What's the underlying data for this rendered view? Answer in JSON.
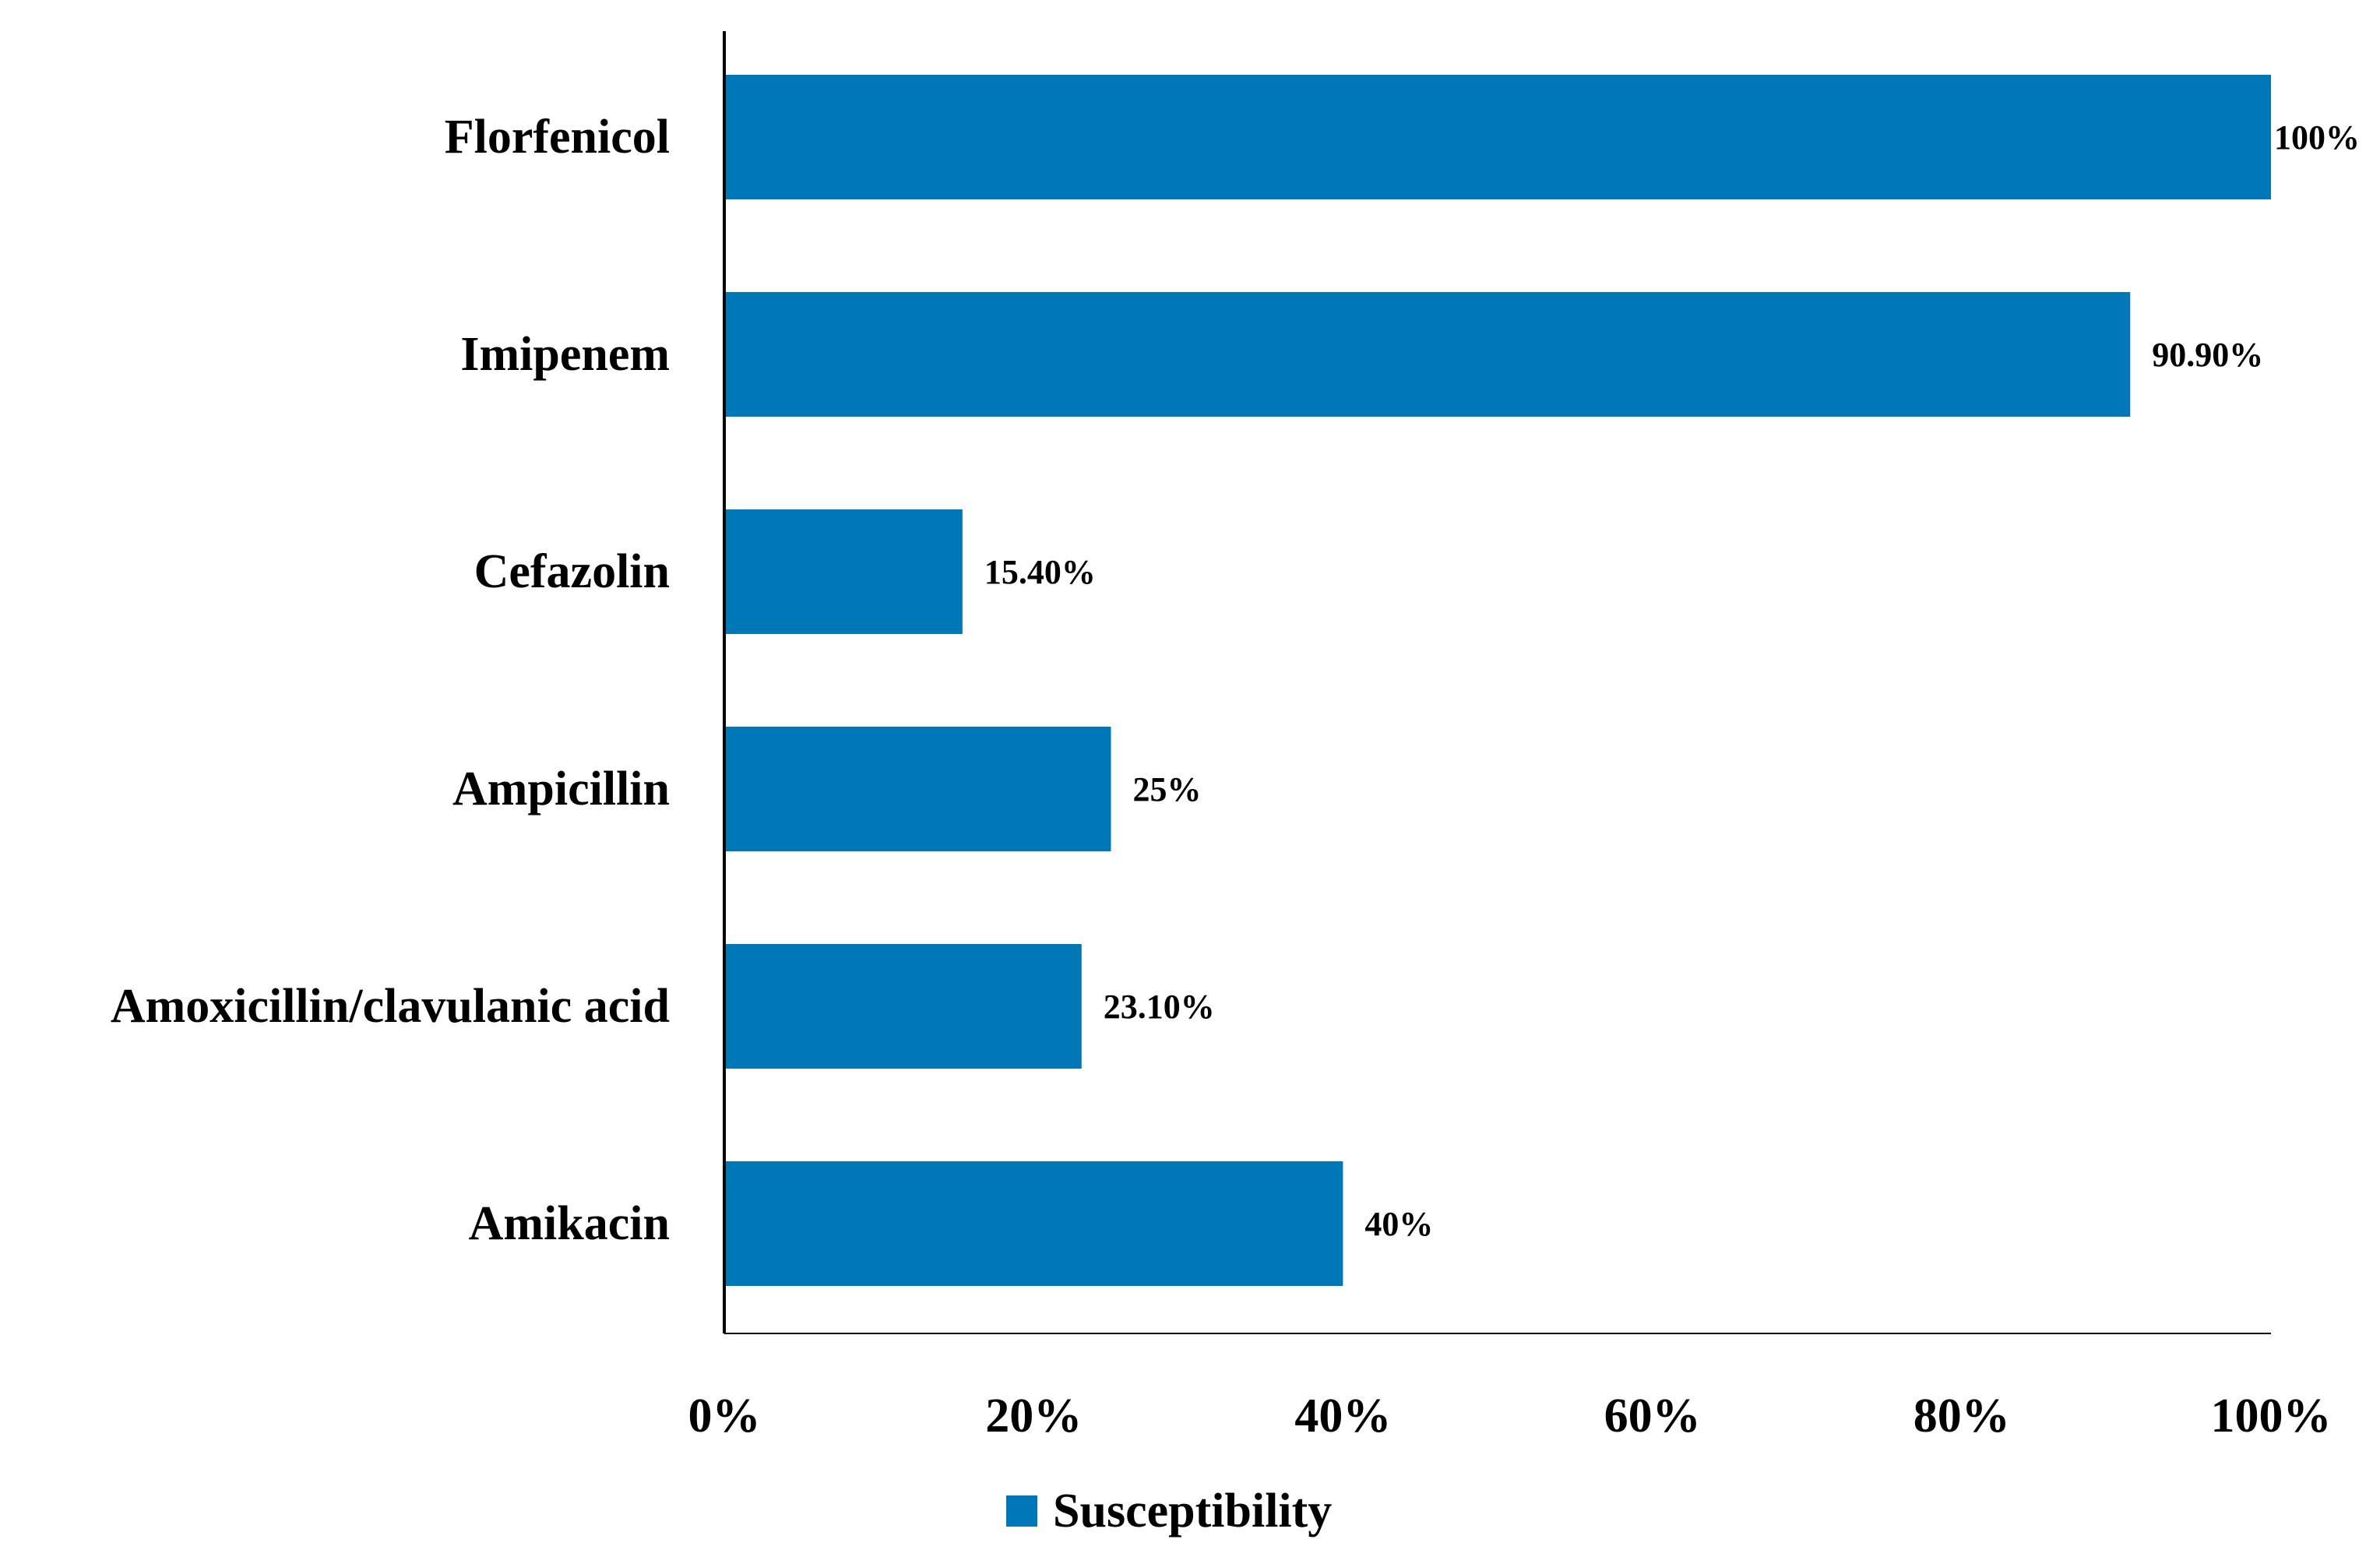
{
  "chart_data": {
    "type": "bar",
    "orientation": "horizontal",
    "categories": [
      "Florfenicol",
      "Imipenem",
      "Cefazolin",
      "Ampicillin",
      "Amoxicillin/clavulanic acid",
      "Amikacin"
    ],
    "series": [
      {
        "name": "Susceptibility",
        "values": [
          100,
          90.9,
          15.4,
          25,
          23.1,
          40
        ],
        "value_labels": [
          "100%",
          "90.90%",
          "15.40%",
          "25%",
          "23.10%",
          "40%"
        ],
        "color": "#0077b6"
      }
    ],
    "x_ticks": [
      "0%",
      "20%",
      "40%",
      "60%",
      "80%",
      "100%"
    ],
    "xlim": [
      0,
      100
    ],
    "grid": false,
    "legend": {
      "position": "bottom-center",
      "label": "Susceptibility"
    },
    "title": "",
    "xlabel": "",
    "ylabel": ""
  }
}
